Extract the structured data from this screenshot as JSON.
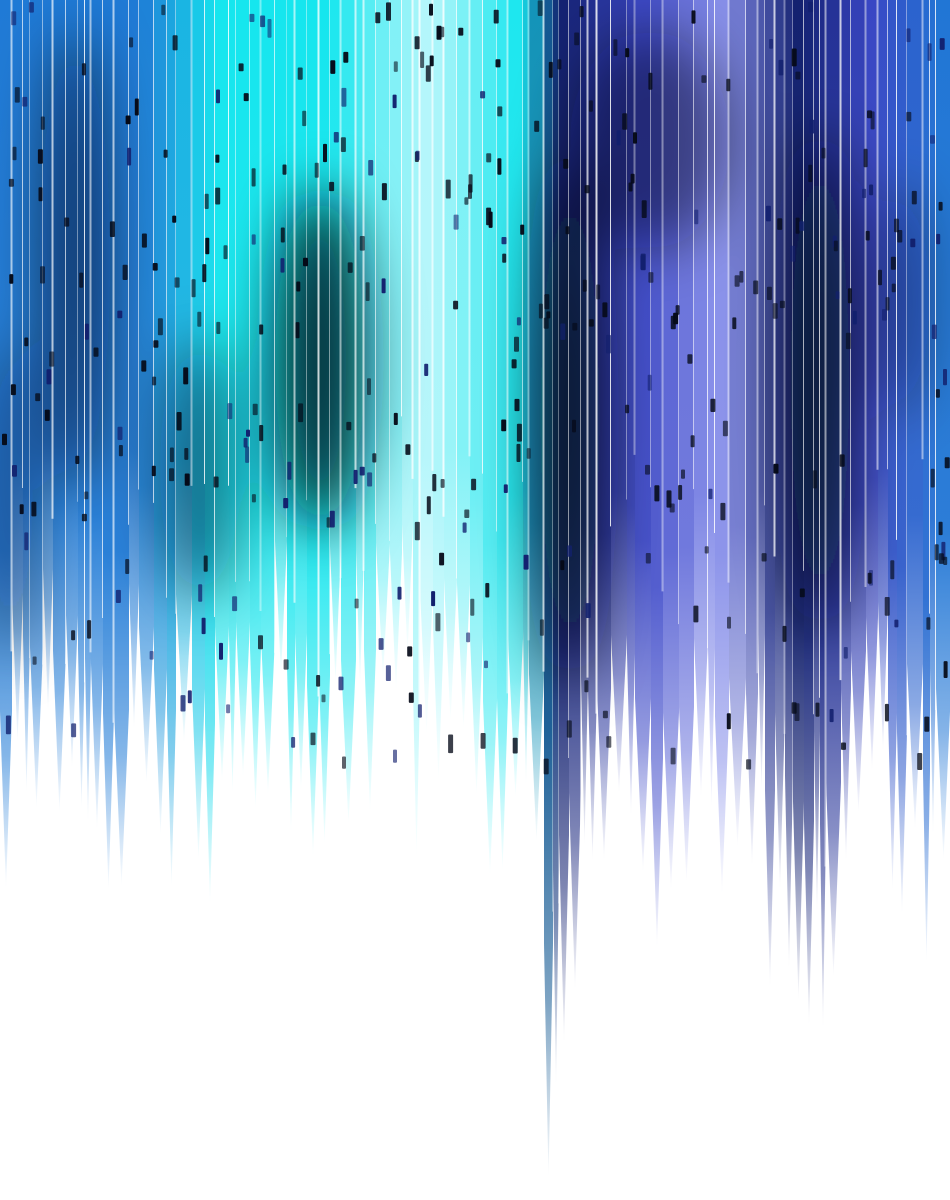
{
  "artwork": {
    "subject": "abstract-vertical-streaks",
    "background": "#ffffff",
    "palette": {
      "azure": "#1f7ad6",
      "cyan": "#16e6ee",
      "pale_cyan": "#b9f7fb",
      "indigo": "#3a46c4",
      "periwinkle": "#8a92ec",
      "navy": "#12206e",
      "ink": "#050a18",
      "highlight": "#ffffff"
    }
  }
}
